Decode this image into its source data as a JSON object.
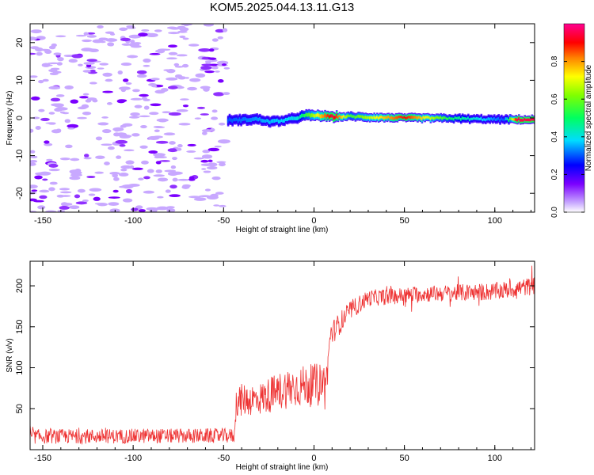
{
  "title": "KOM5.2025.044.13.11.G13",
  "spectrogram": {
    "type": "heatmap",
    "xlabel": "Height of straight line (km)",
    "ylabel": "Frequency (Hz)",
    "xlim": [
      -157,
      122
    ],
    "ylim": [
      -25,
      25
    ],
    "xticks": [
      "-150",
      "-100",
      "-50",
      "0",
      "50",
      "100"
    ],
    "yticks": [
      "-20",
      "-10",
      "0",
      "10",
      "20"
    ],
    "colorbar_label": "Normalized spectral amplitude",
    "colorbar_ticks": [
      "0.0",
      "0.2",
      "0.4",
      "0.6",
      "0.8"
    ],
    "colorbar_range": [
      0,
      1
    ],
    "noise_region_x": [
      -157,
      -48
    ],
    "signal_track": [
      {
        "x": -48,
        "y": -0.6
      },
      {
        "x": -40,
        "y": -0.5
      },
      {
        "x": -32,
        "y": -0.3
      },
      {
        "x": -25,
        "y": -1.0
      },
      {
        "x": -18,
        "y": -0.7
      },
      {
        "x": -12,
        "y": -0.2
      },
      {
        "x": -5,
        "y": 0.7
      },
      {
        "x": 3,
        "y": 0.6
      },
      {
        "x": 10,
        "y": 0.3
      },
      {
        "x": 20,
        "y": 0.4
      },
      {
        "x": 30,
        "y": 0.2
      },
      {
        "x": 40,
        "y": 0.1
      },
      {
        "x": 50,
        "y": 0.0
      },
      {
        "x": 60,
        "y": 0.0
      },
      {
        "x": 75,
        "y": -0.1
      },
      {
        "x": 90,
        "y": -0.3
      },
      {
        "x": 105,
        "y": -0.4
      },
      {
        "x": 122,
        "y": -0.5
      }
    ],
    "signal_strength": [
      {
        "x": -48,
        "v": 0.3
      },
      {
        "x": -10,
        "v": 0.4
      },
      {
        "x": 10,
        "v": 0.95
      },
      {
        "x": 20,
        "v": 0.55
      },
      {
        "x": 50,
        "v": 0.9
      },
      {
        "x": 75,
        "v": 0.5
      },
      {
        "x": 105,
        "v": 0.3
      },
      {
        "x": 112,
        "v": 0.95
      },
      {
        "x": 122,
        "v": 0.95
      }
    ]
  },
  "snr": {
    "type": "line",
    "xlabel": "Height of straight line (km)",
    "ylabel": "SNR (v/v)",
    "xlim": [
      -157,
      122
    ],
    "ylim": [
      0,
      230
    ],
    "xticks": [
      "-150",
      "-100",
      "-50",
      "0",
      "50",
      "100"
    ],
    "yticks": [
      "50",
      "100",
      "150",
      "200"
    ],
    "color": "#ee3333",
    "series": [
      {
        "envelope": [
          {
            "x": -157,
            "mean": 16,
            "spread": 9
          },
          {
            "x": -44,
            "mean": 17,
            "spread": 9
          },
          {
            "x": -43,
            "mean": 60,
            "spread": 20
          },
          {
            "x": -30,
            "mean": 62,
            "spread": 20
          },
          {
            "x": -15,
            "mean": 75,
            "spread": 25
          },
          {
            "x": 0,
            "mean": 80,
            "spread": 25
          },
          {
            "x": 7,
            "mean": 85,
            "spread": 22
          },
          {
            "x": 9,
            "mean": 140,
            "spread": 15
          },
          {
            "x": 20,
            "mean": 170,
            "spread": 12
          },
          {
            "x": 30,
            "mean": 185,
            "spread": 10
          },
          {
            "x": 60,
            "mean": 190,
            "spread": 10
          },
          {
            "x": 100,
            "mean": 193,
            "spread": 11
          },
          {
            "x": 122,
            "mean": 200,
            "spread": 11
          }
        ]
      }
    ]
  }
}
